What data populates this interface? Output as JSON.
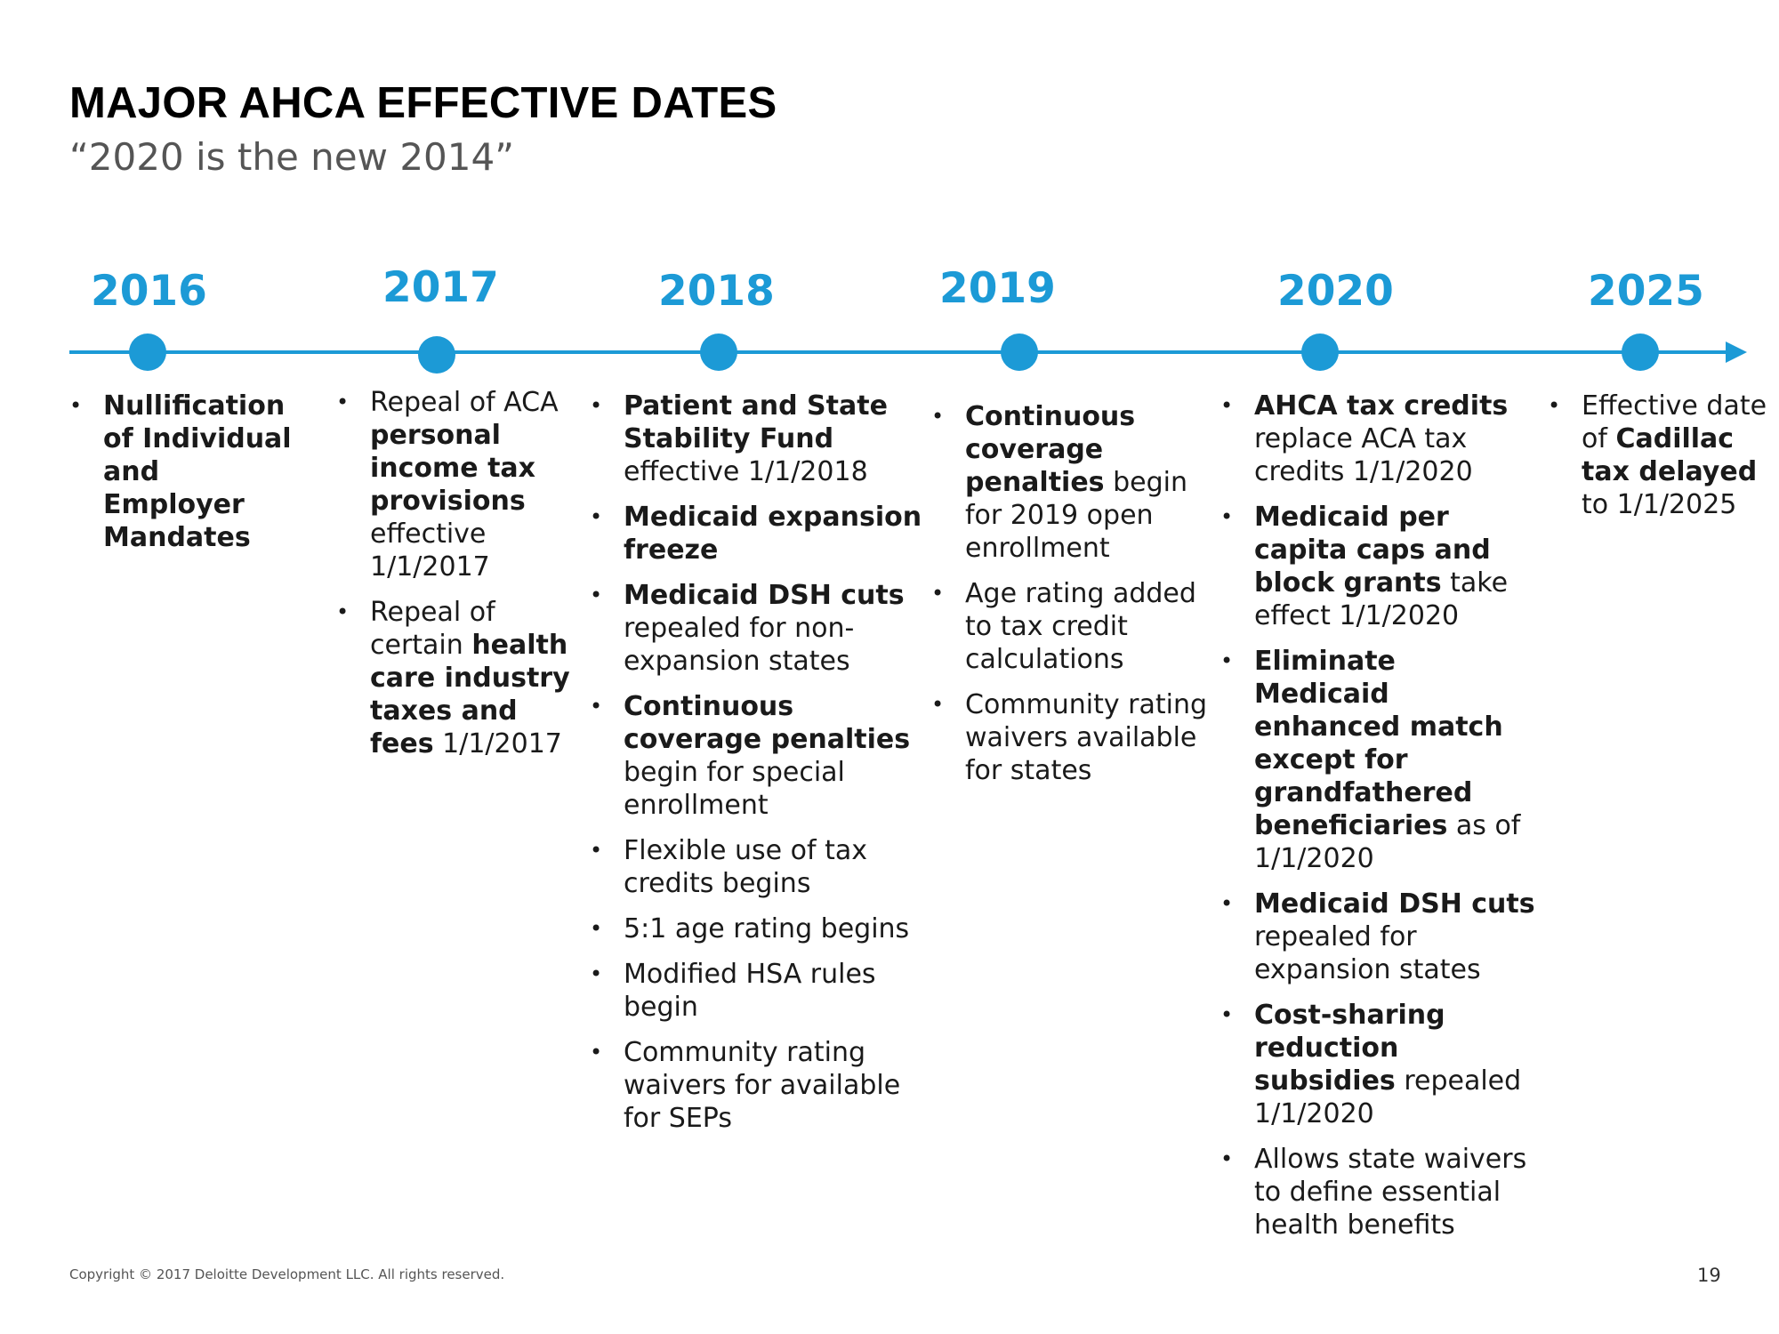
{
  "title": "MAJOR AHCA EFFECTIVE DATES",
  "subtitle": "“2020 is the new 2014”",
  "years": [
    "2016",
    "2017",
    "2018",
    "2019",
    "2020",
    "2025"
  ],
  "columns": [
    {
      "items": [
        [
          {
            "t": "Nullification of Individual and Employer Mandates",
            "b": true
          }
        ]
      ]
    },
    {
      "items": [
        [
          {
            "t": "Repeal of ACA ",
            "b": false
          },
          {
            "t": "personal income tax provisions",
            "b": true
          },
          {
            "t": " effective 1/1/2017",
            "b": false
          }
        ],
        [
          {
            "t": "Repeal of certain ",
            "b": false
          },
          {
            "t": "health care industry taxes and fees",
            "b": true
          },
          {
            "t": " 1/1/2017",
            "b": false
          }
        ]
      ]
    },
    {
      "items": [
        [
          {
            "t": "Patient and State Stability Fund",
            "b": true
          },
          {
            "t": " effective 1/1/2018",
            "b": false
          }
        ],
        [
          {
            "t": "Medicaid expansion freeze",
            "b": true
          }
        ],
        [
          {
            "t": "Medicaid DSH cuts",
            "b": true
          },
          {
            "t": " repealed for non-expansion states",
            "b": false
          }
        ],
        [
          {
            "t": "Continuous coverage penalties",
            "b": true
          },
          {
            "t": " begin for special enrollment",
            "b": false
          }
        ],
        [
          {
            "t": "Flexible use of tax credits begins",
            "b": false
          }
        ],
        [
          {
            "t": "5:1 age rating begins",
            "b": false
          }
        ],
        [
          {
            "t": "Modified HSA rules begin",
            "b": false
          }
        ],
        [
          {
            "t": "Community rating waivers for available for SEPs",
            "b": false
          }
        ]
      ]
    },
    {
      "items": [
        [
          {
            "t": "Continuous coverage penalties",
            "b": true
          },
          {
            "t": " begin for 2019 open enrollment",
            "b": false
          }
        ],
        [
          {
            "t": "Age rating added to tax credit calculations",
            "b": false
          }
        ],
        [
          {
            "t": "Community rating waivers available for states",
            "b": false
          }
        ]
      ]
    },
    {
      "items": [
        [
          {
            "t": "AHCA tax credits",
            "b": true
          },
          {
            "t": " replace ACA tax credits 1/1/2020",
            "b": false
          }
        ],
        [
          {
            "t": "Medicaid per capita caps and block grants",
            "b": true
          },
          {
            "t": " take effect 1/1/2020",
            "b": false
          }
        ],
        [
          {
            "t": "Eliminate Medicaid enhanced match except for grandfathered beneficiaries",
            "b": true
          },
          {
            "t": " as of 1/1/2020",
            "b": false
          }
        ],
        [
          {
            "t": "Medicaid DSH cuts",
            "b": true
          },
          {
            "t": " repealed for expansion states",
            "b": false
          }
        ],
        [
          {
            "t": "Cost-sharing reduction subsidies",
            "b": true
          },
          {
            "t": " repealed 1/1/2020",
            "b": false
          }
        ],
        [
          {
            "t": "Allows state waivers to define essential health benefits",
            "b": false
          }
        ]
      ]
    },
    {
      "items": [
        [
          {
            "t": "Effective date of ",
            "b": false
          },
          {
            "t": "Cadillac tax delayed",
            "b": true
          },
          {
            "t": " to 1/1/2025",
            "b": false
          }
        ]
      ]
    }
  ],
  "colors": {
    "accent": "#1c9ad6"
  },
  "footer": "Copyright © 2017 Deloitte Development LLC. All rights reserved.",
  "page_number": "19"
}
